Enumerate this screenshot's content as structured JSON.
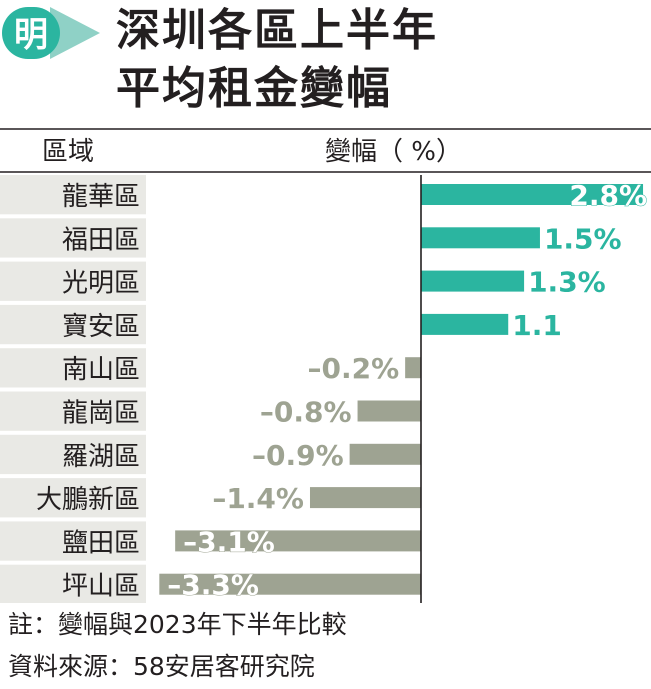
{
  "logo_char": "明",
  "title_lines": [
    "深圳各區上半年",
    "平均租金變幅"
  ],
  "colors": {
    "positive": "#2bb5a0",
    "negative": "#9ea392",
    "row_band": "#e9e9e5",
    "value_label_negative": "#9ea392",
    "value_label_positive_outside": "#2bb5a0"
  },
  "chart_data": {
    "type": "bar",
    "orientation": "horizontal",
    "column_headers": [
      "區域",
      "變幅（ %）"
    ],
    "categories": [
      "龍華區",
      "福田區",
      "光明區",
      "寶安區",
      "南山區",
      "龍崗區",
      "羅湖區",
      "大鵬新區",
      "鹽田區",
      "坪山區"
    ],
    "values": [
      2.8,
      1.5,
      1.3,
      1.1,
      -0.2,
      -0.8,
      -0.9,
      -1.4,
      -3.1,
      -3.3
    ],
    "value_labels": [
      "2.8%",
      "1.5%",
      "1.3%",
      "1.1",
      "–0.2%",
      "–0.8%",
      "–0.9%",
      "–1.4%",
      "–3.1%",
      "–3.3%"
    ],
    "xlim": [
      -3.3,
      2.8
    ],
    "grid": false,
    "legend": "none"
  },
  "footnotes": {
    "note": "註：變幅與2023年下半年比較",
    "source": "資料來源：58安居客研究院"
  }
}
